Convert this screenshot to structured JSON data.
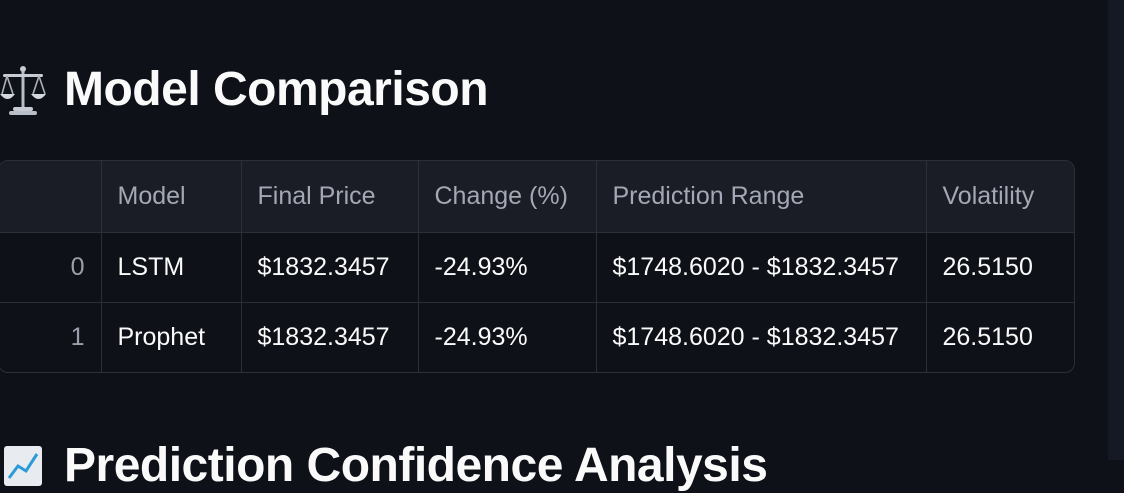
{
  "section1": {
    "title": "Model Comparison",
    "icon": "balance-scale-icon"
  },
  "section2": {
    "title": "Prediction Confidence Analysis",
    "icon": "chart-icon"
  },
  "table": {
    "columns": [
      "",
      "Model",
      "Final Price",
      "Change (%)",
      "Prediction Range",
      "Volatility"
    ],
    "rows": [
      [
        "0",
        "LSTM",
        "$1832.3457",
        "-24.93%",
        "$1748.6020 - $1832.3457",
        "26.5150"
      ],
      [
        "1",
        "Prophet",
        "$1832.3457",
        "-24.93%",
        "$1748.6020 - $1832.3457",
        "26.5150"
      ]
    ]
  },
  "colors": {
    "background": "#0e1117",
    "header_bg": "#1a1d26",
    "border": "#2b2f3a",
    "text": "#fafafa",
    "muted": "#a3a8b4"
  }
}
